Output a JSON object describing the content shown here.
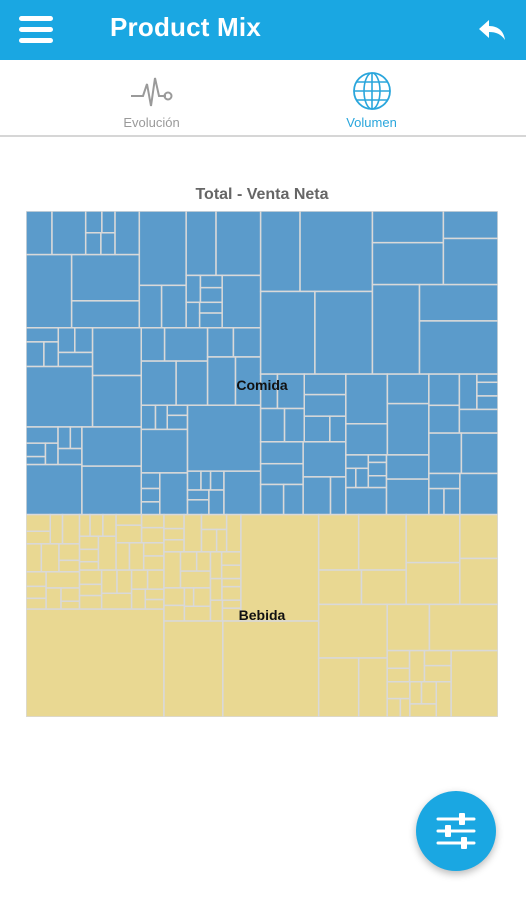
{
  "header": {
    "title": "Product Mix",
    "menu_icon": "hamburger-menu-icon",
    "back_icon": "back-arrow-icon"
  },
  "tabs": [
    {
      "label": "Evolución",
      "icon": "pulse-line-icon",
      "active": false
    },
    {
      "label": "Volumen",
      "icon": "globe-icon",
      "active": true
    }
  ],
  "chart_data": {
    "type": "treemap",
    "title": "Total - Venta Neta",
    "groups": [
      {
        "name": "Comida",
        "share": 0.6,
        "color": "#5b9bcb"
      },
      {
        "name": "Bebida",
        "share": 0.4,
        "color": "#e9d892"
      }
    ]
  },
  "fab": {
    "icon": "sliders-filter-icon"
  },
  "colors": {
    "primary": "#1aa7e2",
    "comida": "#5b9bcb",
    "bebida": "#e9d892",
    "cell_border": "#d9d9d9"
  }
}
